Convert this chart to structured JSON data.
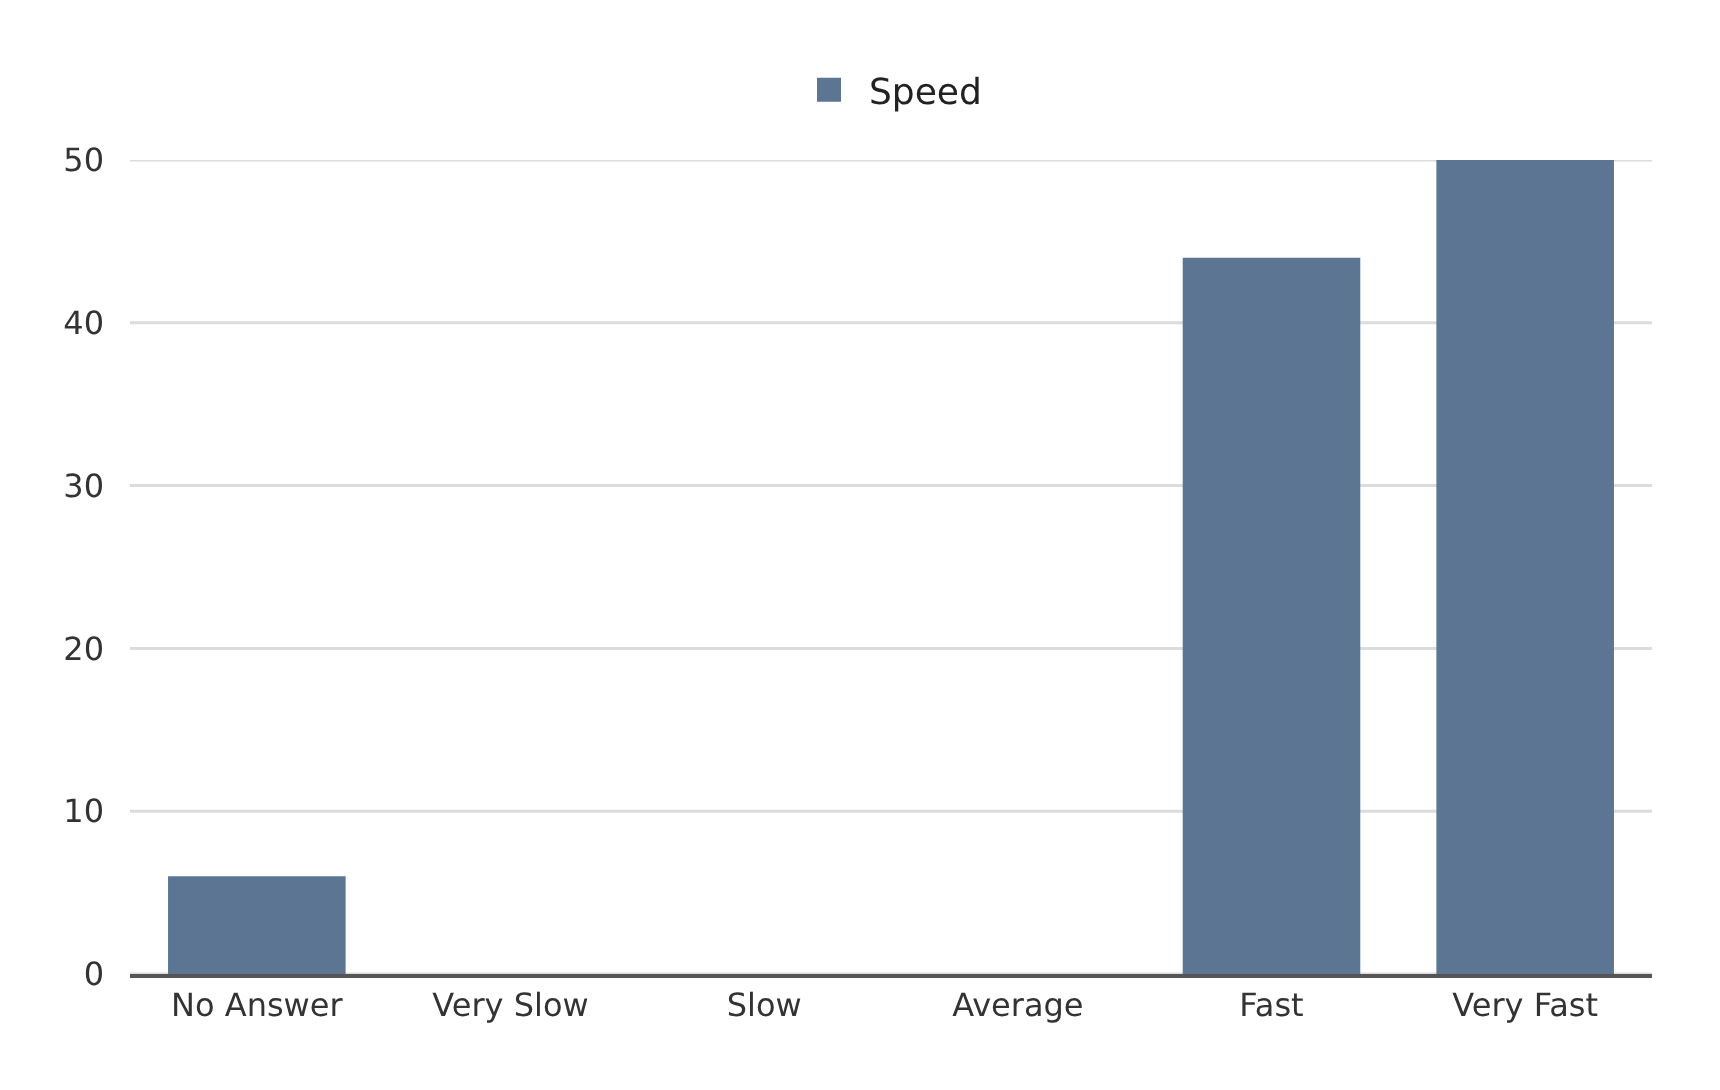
{
  "chart_data": {
    "type": "bar",
    "categories": [
      "No Answer",
      "Very Slow",
      "Slow",
      "Average",
      "Fast",
      "Very Fast"
    ],
    "series": [
      {
        "name": "Speed",
        "color": "#5b7593",
        "values": [
          6,
          0,
          0,
          0,
          44,
          50
        ]
      }
    ],
    "ylim": [
      0,
      50
    ],
    "yticks": [
      0,
      10,
      20,
      30,
      40,
      50
    ],
    "grid": "y",
    "legend": "top"
  }
}
